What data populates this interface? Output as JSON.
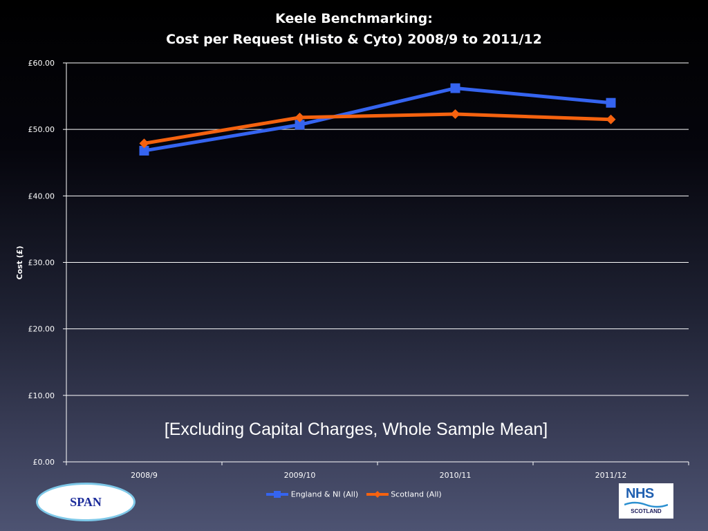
{
  "chart_data": {
    "type": "line",
    "title": [
      "Keele Benchmarking:",
      "Cost per Request (Histo & Cyto)  2008/9 to 2011/12"
    ],
    "xlabel": "",
    "ylabel": "Cost (£)",
    "ylim": [
      0,
      60
    ],
    "yticks": [
      "£0.00",
      "£10.00",
      "£20.00",
      "£30.00",
      "£40.00",
      "£50.00",
      "£60.00"
    ],
    "ytick_values": [
      0,
      10,
      20,
      30,
      40,
      50,
      60
    ],
    "grid": true,
    "legend_position": "bottom",
    "categories": [
      "2008/9",
      "2009/10",
      "2010/11",
      "2011/12"
    ],
    "series": [
      {
        "name": "England & NI (All)",
        "values": [
          46.8,
          50.7,
          56.2,
          54.0
        ],
        "color": "#3564f0",
        "marker": "square"
      },
      {
        "name": "Scotland (All)",
        "values": [
          47.9,
          51.8,
          52.3,
          51.5
        ],
        "color": "#f5620f",
        "marker": "diamond"
      }
    ],
    "annotation": "[Excluding Capital Charges, Whole Sample Mean]"
  },
  "logos": {
    "span": "SPAN",
    "nhs_word": "NHS",
    "nhs_sub": "SCOTLAND"
  }
}
